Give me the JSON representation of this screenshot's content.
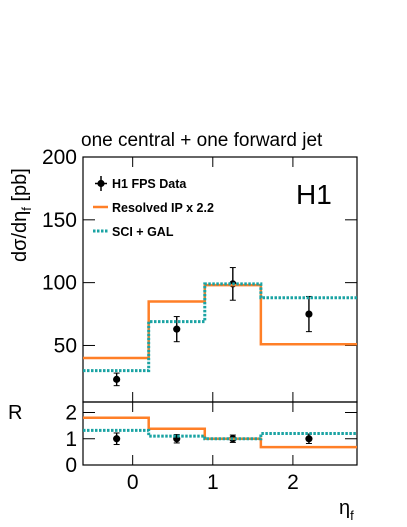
{
  "chart_data": [
    {
      "type": "line",
      "panel": "main",
      "title": "one central + one forward jet",
      "xlabel": "",
      "ylabel": "dσ/dη",
      "ylabel_sub": "f",
      "ylabel_unit": " [pb]",
      "xlim": [
        -0.62,
        2.8
      ],
      "ylim": [
        5,
        200
      ],
      "yticks": [
        50,
        100,
        150,
        200
      ],
      "grid": false,
      "legend": "top-left",
      "badge": "H1",
      "bin_edges": [
        -0.62,
        0.2,
        0.9,
        1.6,
        2.8
      ],
      "series": [
        {
          "name": "H1 FPS Data",
          "kind": "points",
          "color": "#000000",
          "x": [
            -0.2,
            0.55,
            1.25,
            2.2
          ],
          "y": [
            23,
            63,
            99,
            75
          ],
          "err_lo": [
            5,
            10,
            13,
            14
          ],
          "err_hi": [
            5,
            10,
            13,
            14
          ]
        },
        {
          "name": "Resolved IP x 2.2",
          "kind": "step",
          "color": "#ff7f27",
          "values": [
            40,
            85,
            98,
            51
          ]
        },
        {
          "name": "SCI + GAL",
          "kind": "step",
          "color": "#1aa3a3",
          "dashed": true,
          "values": [
            30,
            69,
            99,
            88
          ]
        }
      ]
    },
    {
      "type": "line",
      "panel": "ratio",
      "xlabel": "η",
      "xlabel_sub": "f",
      "ylabel": "R",
      "xlim": [
        -0.62,
        2.8
      ],
      "ylim": [
        0,
        2.4
      ],
      "yticks": [
        0,
        1,
        2
      ],
      "xticks": [
        0,
        1,
        2
      ],
      "grid": false,
      "bin_edges": [
        -0.62,
        0.2,
        0.9,
        1.6,
        2.8
      ],
      "series": [
        {
          "name": "H1 FPS Data",
          "kind": "points",
          "color": "#000000",
          "x": [
            -0.2,
            0.55,
            1.25,
            2.2
          ],
          "y": [
            1.0,
            1.0,
            1.0,
            1.0
          ],
          "err_lo": [
            0.22,
            0.16,
            0.14,
            0.18
          ],
          "err_hi": [
            0.22,
            0.16,
            0.14,
            0.18
          ]
        },
        {
          "name": "Resolved IP x 2.2",
          "kind": "step",
          "color": "#ff7f27",
          "values": [
            1.8,
            1.38,
            1.0,
            0.68
          ]
        },
        {
          "name": "SCI + GAL",
          "kind": "step",
          "color": "#1aa3a3",
          "dashed": true,
          "values": [
            1.32,
            1.1,
            1.0,
            1.2
          ]
        }
      ]
    }
  ]
}
